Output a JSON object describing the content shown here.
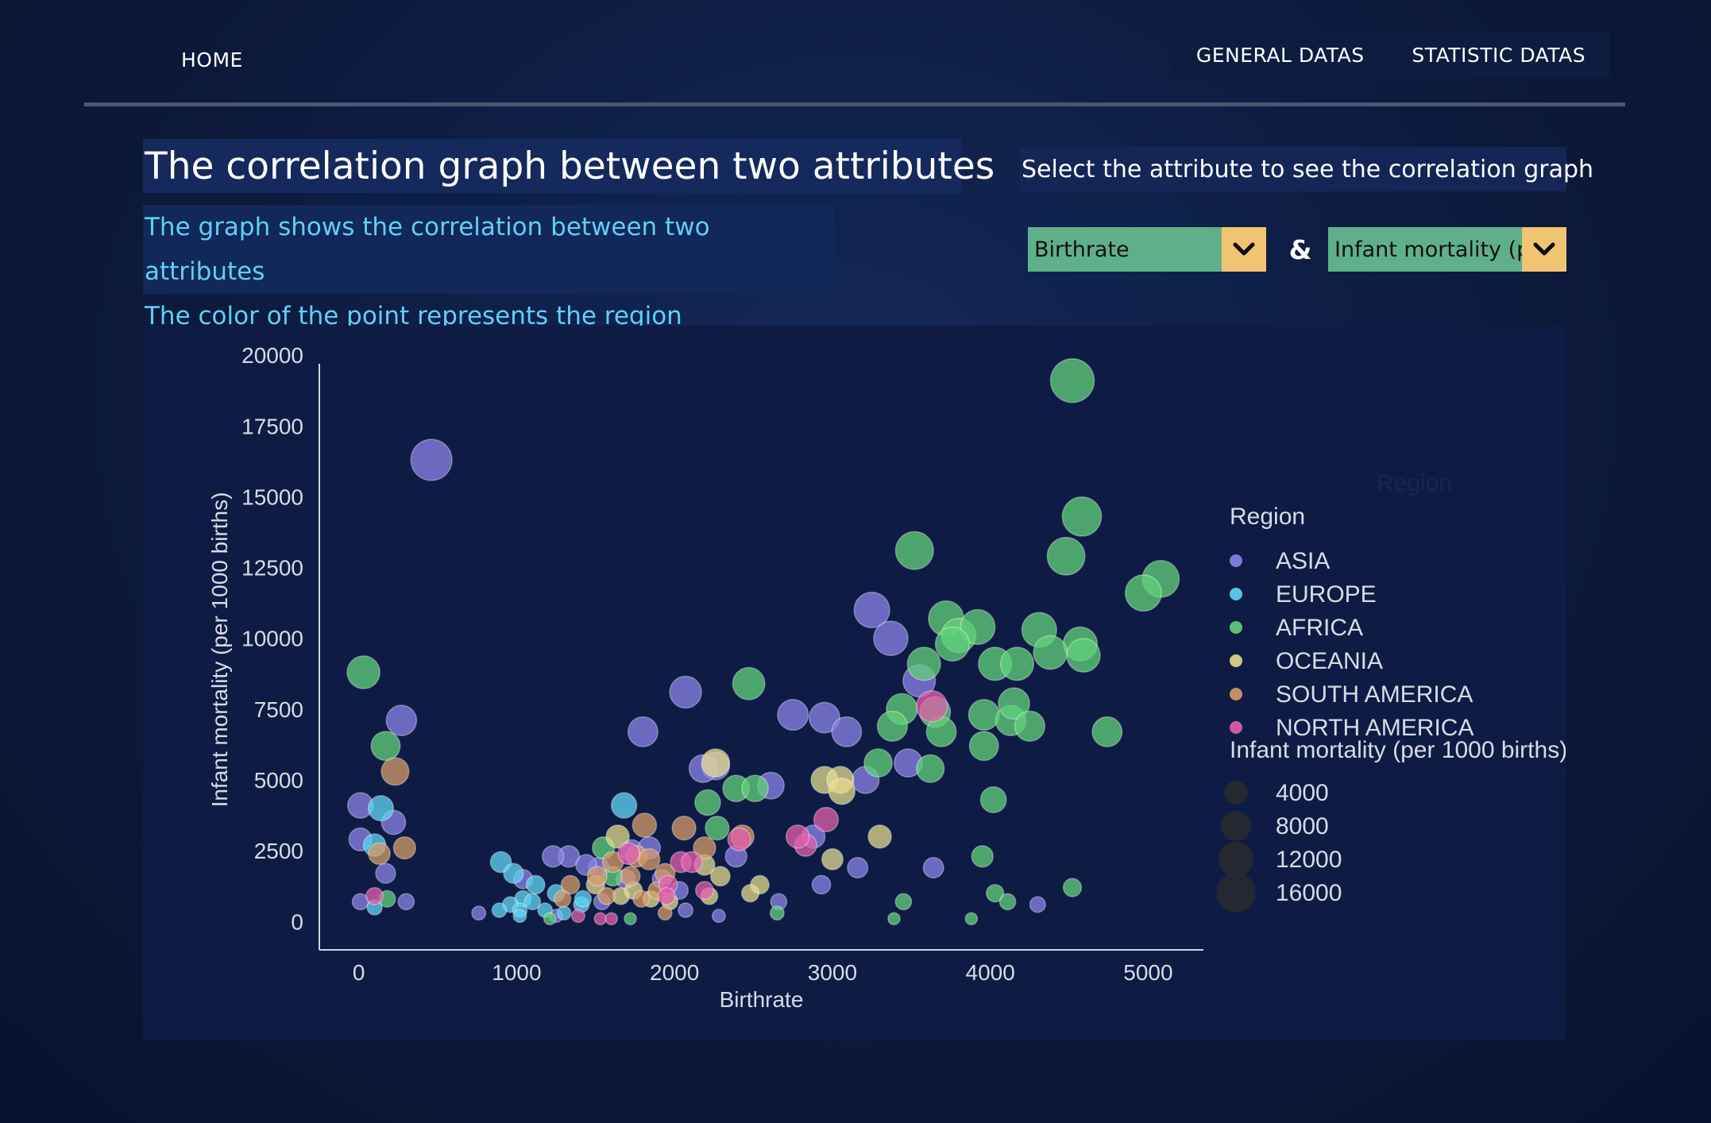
{
  "nav": {
    "home": "HOME",
    "general": "GENERAL DATAS",
    "statistic": "STATISTIC DATAS"
  },
  "header": {
    "title": "The correlation graph between two attributes",
    "desc_line1": "The graph shows the correlation between two attributes",
    "desc_line2": "The color of the point represents the region",
    "select_prompt": "Select the attribute to see the correlation graph",
    "x_select": "Birthrate",
    "y_select": "Infant mortality (p",
    "ampersand": "&"
  },
  "colors": {
    "ASIA": "#8b83ea",
    "EUROPE": "#62d6f4",
    "AFRICA": "#62d37a",
    "OCEANIA": "#e4dc8e",
    "SOUTH AMERICA": "#d89c68",
    "NORTH AMERICA": "#e560ae",
    "accent_dropdown": "#5fb08a",
    "accent_arrow": "#f0c470"
  },
  "chart_data": {
    "type": "scatter",
    "xlabel": "Birthrate",
    "ylabel": "Infant mortality (per 1000 births)",
    "xlim": [
      -250,
      5350
    ],
    "ylim": [
      -1000,
      20200
    ],
    "xticks": [
      0,
      1000,
      2000,
      3000,
      4000,
      5000
    ],
    "yticks": [
      0,
      2500,
      5000,
      7500,
      10000,
      12500,
      15000,
      17500,
      20000
    ],
    "legend": {
      "title": "Region",
      "hidden_title": "Region",
      "regions": [
        "ASIA",
        "EUROPE",
        "AFRICA",
        "OCEANIA",
        "SOUTH AMERICA",
        "NORTH AMERICA"
      ],
      "size_title": "Infant mortality (per 1000 births)",
      "sizes": [
        4000,
        8000,
        12000,
        16000
      ]
    },
    "series": [
      {
        "name": "ASIA",
        "points": [
          [
            460,
            16300
          ],
          [
            270,
            7100
          ],
          [
            10,
            4100
          ],
          [
            220,
            3500
          ],
          [
            10,
            2900
          ],
          [
            170,
            1700
          ],
          [
            10,
            700
          ],
          [
            300,
            700
          ],
          [
            3250,
            11000
          ],
          [
            3370,
            10000
          ],
          [
            3550,
            8500
          ],
          [
            2070,
            8100
          ],
          [
            1800,
            6700
          ],
          [
            2260,
            5500
          ],
          [
            2180,
            5400
          ],
          [
            2750,
            7300
          ],
          [
            2950,
            7200
          ],
          [
            3090,
            6700
          ],
          [
            3480,
            5600
          ],
          [
            2610,
            4800
          ],
          [
            3210,
            5000
          ],
          [
            3640,
            1900
          ],
          [
            3160,
            1900
          ],
          [
            2930,
            1300
          ],
          [
            2880,
            3000
          ],
          [
            2390,
            2300
          ],
          [
            2660,
            700
          ],
          [
            2280,
            200
          ],
          [
            4300,
            600
          ],
          [
            1730,
            2500
          ],
          [
            1520,
            1900
          ],
          [
            1330,
            2300
          ],
          [
            1230,
            2300
          ],
          [
            1040,
            1500
          ],
          [
            1440,
            2000
          ],
          [
            1690,
            1500
          ],
          [
            1840,
            2600
          ],
          [
            1920,
            1500
          ],
          [
            2030,
            1100
          ],
          [
            2070,
            400
          ],
          [
            760,
            300
          ],
          [
            1250,
            200
          ],
          [
            1540,
            700
          ]
        ]
      },
      {
        "name": "EUROPE",
        "points": [
          [
            140,
            4000
          ],
          [
            100,
            2700
          ],
          [
            100,
            500
          ],
          [
            900,
            2100
          ],
          [
            980,
            1700
          ],
          [
            1120,
            1300
          ],
          [
            1040,
            800
          ],
          [
            960,
            600
          ],
          [
            890,
            400
          ],
          [
            1020,
            400
          ],
          [
            1180,
            400
          ],
          [
            1100,
            700
          ],
          [
            1250,
            1000
          ],
          [
            1410,
            600
          ],
          [
            1300,
            300
          ],
          [
            1020,
            200
          ],
          [
            1680,
            4100
          ],
          [
            1420,
            800
          ]
        ]
      },
      {
        "name": "AFRICA",
        "points": [
          [
            30,
            8800
          ],
          [
            170,
            6200
          ],
          [
            180,
            800
          ],
          [
            4520,
            19100
          ],
          [
            4580,
            14300
          ],
          [
            4480,
            12900
          ],
          [
            5080,
            12100
          ],
          [
            4970,
            11600
          ],
          [
            3520,
            13100
          ],
          [
            3720,
            10700
          ],
          [
            3800,
            10100
          ],
          [
            3920,
            10400
          ],
          [
            4310,
            10300
          ],
          [
            4570,
            9800
          ],
          [
            4590,
            9400
          ],
          [
            4380,
            9500
          ],
          [
            4030,
            9100
          ],
          [
            4170,
            9100
          ],
          [
            3760,
            9800
          ],
          [
            3580,
            9100
          ],
          [
            3440,
            7500
          ],
          [
            3650,
            7400
          ],
          [
            3380,
            6900
          ],
          [
            3690,
            6700
          ],
          [
            3960,
            7300
          ],
          [
            4130,
            7100
          ],
          [
            4150,
            7700
          ],
          [
            4250,
            6900
          ],
          [
            4740,
            6700
          ],
          [
            3290,
            5600
          ],
          [
            3620,
            5400
          ],
          [
            3960,
            6200
          ],
          [
            4020,
            4300
          ],
          [
            2470,
            8400
          ],
          [
            2390,
            4700
          ],
          [
            2510,
            4700
          ],
          [
            2210,
            4200
          ],
          [
            2270,
            3300
          ],
          [
            1550,
            2600
          ],
          [
            1610,
            1600
          ],
          [
            3950,
            2300
          ],
          [
            4520,
            1200
          ],
          [
            4030,
            1000
          ],
          [
            4110,
            700
          ],
          [
            3450,
            700
          ],
          [
            3390,
            100
          ],
          [
            3880,
            100
          ],
          [
            2650,
            300
          ],
          [
            1720,
            100
          ],
          [
            1210,
            100
          ]
        ]
      },
      {
        "name": "OCEANIA",
        "points": [
          [
            2260,
            5600
          ],
          [
            2950,
            5000
          ],
          [
            3050,
            5000
          ],
          [
            3060,
            4600
          ],
          [
            2190,
            2000
          ],
          [
            2290,
            1600
          ],
          [
            2540,
            1300
          ],
          [
            3000,
            2200
          ],
          [
            3300,
            3000
          ],
          [
            2480,
            1000
          ],
          [
            1640,
            3000
          ],
          [
            1660,
            900
          ],
          [
            1740,
            1100
          ],
          [
            1850,
            800
          ],
          [
            1970,
            700
          ],
          [
            2220,
            900
          ],
          [
            1500,
            1300
          ]
        ]
      },
      {
        "name": "SOUTH AMERICA",
        "points": [
          [
            230,
            5300
          ],
          [
            290,
            2600
          ],
          [
            130,
            2400
          ],
          [
            1810,
            3400
          ],
          [
            2060,
            3300
          ],
          [
            2430,
            3000
          ],
          [
            2190,
            2600
          ],
          [
            1760,
            2300
          ],
          [
            1840,
            2200
          ],
          [
            1610,
            2100
          ],
          [
            1510,
            1600
          ],
          [
            1720,
            1600
          ],
          [
            1940,
            1700
          ],
          [
            1890,
            1100
          ],
          [
            1790,
            800
          ],
          [
            1340,
            1300
          ],
          [
            1290,
            800
          ],
          [
            1570,
            900
          ],
          [
            1940,
            300
          ]
        ]
      },
      {
        "name": "NORTH AMERICA",
        "points": [
          [
            3630,
            7600
          ],
          [
            2960,
            3600
          ],
          [
            2830,
            2700
          ],
          [
            2410,
            2900
          ],
          [
            2040,
            2100
          ],
          [
            2110,
            2100
          ],
          [
            1960,
            1300
          ],
          [
            2190,
            1100
          ],
          [
            1950,
            900
          ],
          [
            100,
            900
          ],
          [
            1390,
            200
          ],
          [
            1530,
            100
          ],
          [
            1600,
            100
          ],
          [
            2780,
            3000
          ],
          [
            1710,
            2400
          ]
        ]
      }
    ]
  }
}
